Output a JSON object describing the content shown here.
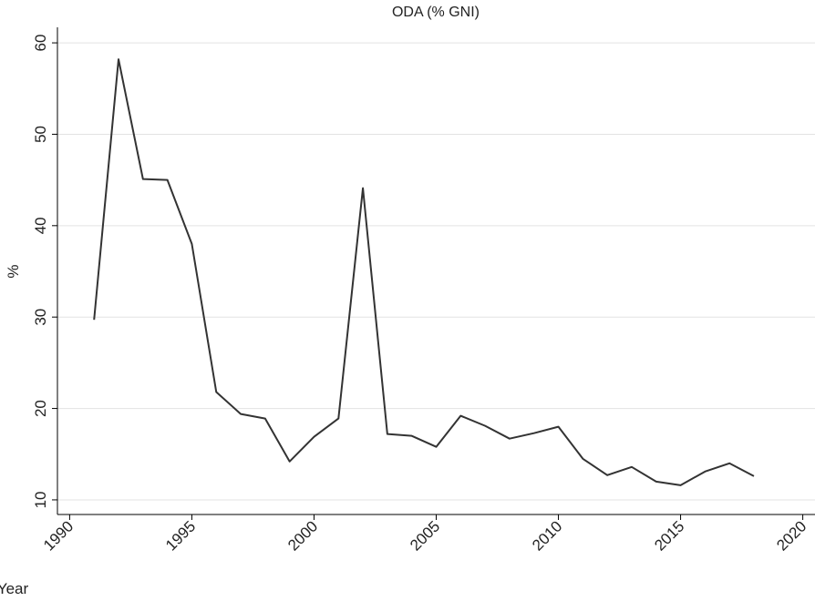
{
  "chart_data": {
    "type": "line",
    "title": "ODA (% GNI)",
    "x_label": "Year",
    "y_label": "%",
    "x": [
      1991,
      1992,
      1993,
      1994,
      1995,
      1996,
      1997,
      1998,
      1999,
      2000,
      2001,
      2002,
      2003,
      2004,
      2005,
      2006,
      2007,
      2008,
      2009,
      2010,
      2011,
      2012,
      2013,
      2014,
      2015,
      2016,
      2017,
      2018
    ],
    "values": [
      29.7,
      58.2,
      45.1,
      45.0,
      38.0,
      21.8,
      19.4,
      18.9,
      14.2,
      16.9,
      18.9,
      44.1,
      17.2,
      17.0,
      15.8,
      19.2,
      18.1,
      16.7,
      17.3,
      18.0,
      14.5,
      12.7,
      13.6,
      12.0,
      11.6,
      13.1,
      14.0,
      12.6
    ],
    "color": "#333333",
    "xlim": [
      1989.5,
      2020.5
    ],
    "xticks": [
      1990,
      1995,
      2000,
      2005,
      2010,
      2015,
      2020
    ],
    "ylim": [
      8.4,
      61.7
    ],
    "yticks": [
      10,
      20,
      30,
      40,
      50,
      60
    ],
    "grid": true
  }
}
